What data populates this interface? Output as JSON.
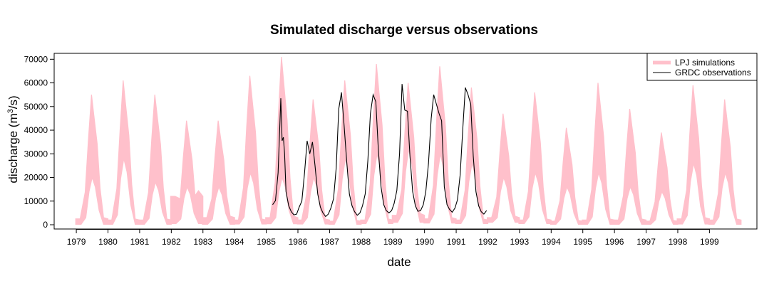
{
  "chart_data": {
    "type": "line",
    "title": "Simulated discharge versus observations",
    "xlabel": "date",
    "ylabel_main": "discharge (m",
    "ylabel_sup": "3",
    "ylabel_end": "/s)",
    "x_unit": "year",
    "xlim": [
      1978.3,
      2000.5
    ],
    "ylim": [
      -1800,
      72500
    ],
    "x_ticks": [
      "1979",
      "1980",
      "1981",
      "1982",
      "1983",
      "1984",
      "1985",
      "1986",
      "1987",
      "1988",
      "1989",
      "1990",
      "1991",
      "1992",
      "1993",
      "1994",
      "1995",
      "1996",
      "1997",
      "1998",
      "1999"
    ],
    "y_ticks": [
      "0",
      "10000",
      "20000",
      "30000",
      "40000",
      "50000",
      "60000",
      "70000"
    ],
    "grid": false,
    "legend_position": "top-right",
    "colors": {
      "simulations": "#ffc0cb",
      "observations": "#000000"
    },
    "series": [
      {
        "name": "LPJ simulations",
        "kind": "band",
        "annual_peaks": [
          {
            "year": 1979,
            "low_min": 200,
            "low_max": 2500,
            "peak": 55000,
            "peak_low": 20000
          },
          {
            "year": 1980,
            "low_min": 200,
            "low_max": 2000,
            "peak": 61000,
            "peak_low": 28000
          },
          {
            "year": 1981,
            "low_min": 200,
            "low_max": 2000,
            "peak": 55000,
            "peak_low": 18000
          },
          {
            "year": 1982,
            "low_min": 500,
            "low_max": 12000,
            "peak": 44000,
            "peak_low": 16000
          },
          {
            "year": 1983,
            "low_min": 200,
            "low_max": 3000,
            "peak": 44000,
            "peak_low": 16000
          },
          {
            "year": 1984,
            "low_min": 300,
            "low_max": 2000,
            "peak": 63000,
            "peak_low": 22000
          },
          {
            "year": 1985,
            "low_min": 400,
            "low_max": 3000,
            "peak": 71000,
            "peak_low": 20000
          },
          {
            "year": 1986,
            "low_min": 300,
            "low_max": 2000,
            "peak": 53000,
            "peak_low": 20000
          },
          {
            "year": 1987,
            "low_min": 200,
            "low_max": 1500,
            "peak": 61000,
            "peak_low": 28000
          },
          {
            "year": 1988,
            "low_min": 500,
            "low_max": 2000,
            "peak": 68000,
            "peak_low": 30000
          },
          {
            "year": 1989,
            "low_min": 1000,
            "low_max": 4000,
            "peak": 60000,
            "peak_low": 32000
          },
          {
            "year": 1990,
            "low_min": 700,
            "low_max": 2500,
            "peak": 67000,
            "peak_low": 30000
          },
          {
            "year": 1991,
            "low_min": 500,
            "low_max": 2000,
            "peak": 58000,
            "peak_low": 26000
          },
          {
            "year": 1992,
            "low_min": 1000,
            "low_max": 3000,
            "peak": 47000,
            "peak_low": 20000
          },
          {
            "year": 1993,
            "low_min": 500,
            "low_max": 2000,
            "peak": 56000,
            "peak_low": 22000
          },
          {
            "year": 1994,
            "low_min": 200,
            "low_max": 1500,
            "peak": 41000,
            "peak_low": 16000
          },
          {
            "year": 1995,
            "low_min": 200,
            "low_max": 2000,
            "peak": 60000,
            "peak_low": 22000
          },
          {
            "year": 1996,
            "low_min": 200,
            "low_max": 2000,
            "peak": 49000,
            "peak_low": 16000
          },
          {
            "year": 1997,
            "low_min": 200,
            "low_max": 1500,
            "peak": 39000,
            "peak_low": 14000
          },
          {
            "year": 1998,
            "low_min": 300,
            "low_max": 2500,
            "peak": 59000,
            "peak_low": 26000
          },
          {
            "year": 1999,
            "low_min": 200,
            "low_max": 2000,
            "peak": 53000,
            "peak_low": 22000
          }
        ]
      },
      {
        "name": "GRDC observations",
        "kind": "line",
        "points": [
          [
            1985.2,
            8500
          ],
          [
            1985.29,
            10200
          ],
          [
            1985.375,
            22000
          ],
          [
            1985.46,
            53500
          ],
          [
            1985.5,
            35500
          ],
          [
            1985.54,
            37000
          ],
          [
            1985.58,
            30000
          ],
          [
            1985.625,
            14000
          ],
          [
            1985.71,
            8000
          ],
          [
            1985.79,
            5500
          ],
          [
            1985.875,
            4200
          ],
          [
            1985.96,
            4500
          ],
          [
            1986.04,
            7500
          ],
          [
            1986.125,
            10000
          ],
          [
            1986.21,
            22000
          ],
          [
            1986.29,
            35500
          ],
          [
            1986.375,
            30000
          ],
          [
            1986.46,
            35000
          ],
          [
            1986.54,
            25000
          ],
          [
            1986.625,
            13000
          ],
          [
            1986.71,
            7500
          ],
          [
            1986.79,
            5000
          ],
          [
            1986.875,
            3500
          ],
          [
            1986.96,
            4500
          ],
          [
            1987.04,
            7000
          ],
          [
            1987.125,
            11000
          ],
          [
            1987.21,
            24000
          ],
          [
            1987.29,
            49000
          ],
          [
            1987.375,
            56000
          ],
          [
            1987.46,
            42000
          ],
          [
            1987.54,
            27000
          ],
          [
            1987.625,
            13000
          ],
          [
            1987.71,
            8000
          ],
          [
            1987.79,
            5500
          ],
          [
            1987.875,
            4000
          ],
          [
            1987.96,
            5000
          ],
          [
            1988.04,
            8000
          ],
          [
            1988.125,
            13000
          ],
          [
            1988.21,
            27000
          ],
          [
            1988.29,
            47000
          ],
          [
            1988.375,
            55000
          ],
          [
            1988.46,
            52000
          ],
          [
            1988.54,
            32000
          ],
          [
            1988.625,
            16000
          ],
          [
            1988.71,
            8500
          ],
          [
            1988.79,
            6000
          ],
          [
            1988.875,
            5000
          ],
          [
            1988.96,
            6000
          ],
          [
            1989.04,
            9000
          ],
          [
            1989.125,
            14500
          ],
          [
            1989.21,
            30000
          ],
          [
            1989.29,
            59500
          ],
          [
            1989.375,
            48500
          ],
          [
            1989.46,
            48000
          ],
          [
            1989.54,
            29000
          ],
          [
            1989.625,
            14000
          ],
          [
            1989.71,
            8000
          ],
          [
            1989.79,
            5700
          ],
          [
            1989.875,
            6000
          ],
          [
            1989.96,
            8500
          ],
          [
            1990.04,
            14000
          ],
          [
            1990.125,
            26000
          ],
          [
            1990.21,
            45000
          ],
          [
            1990.29,
            55000
          ],
          [
            1990.375,
            51000
          ],
          [
            1990.46,
            47000
          ],
          [
            1990.54,
            44000
          ],
          [
            1990.625,
            16000
          ],
          [
            1990.71,
            8500
          ],
          [
            1990.79,
            6500
          ],
          [
            1990.875,
            5300
          ],
          [
            1990.96,
            7000
          ],
          [
            1991.04,
            10500
          ],
          [
            1991.125,
            21000
          ],
          [
            1991.21,
            41000
          ],
          [
            1991.29,
            58000
          ],
          [
            1991.375,
            55000
          ],
          [
            1991.46,
            51000
          ],
          [
            1991.54,
            29000
          ],
          [
            1991.625,
            14000
          ],
          [
            1991.71,
            8000
          ],
          [
            1991.79,
            5500
          ],
          [
            1991.875,
            4500
          ],
          [
            1991.96,
            6000
          ]
        ]
      }
    ]
  }
}
